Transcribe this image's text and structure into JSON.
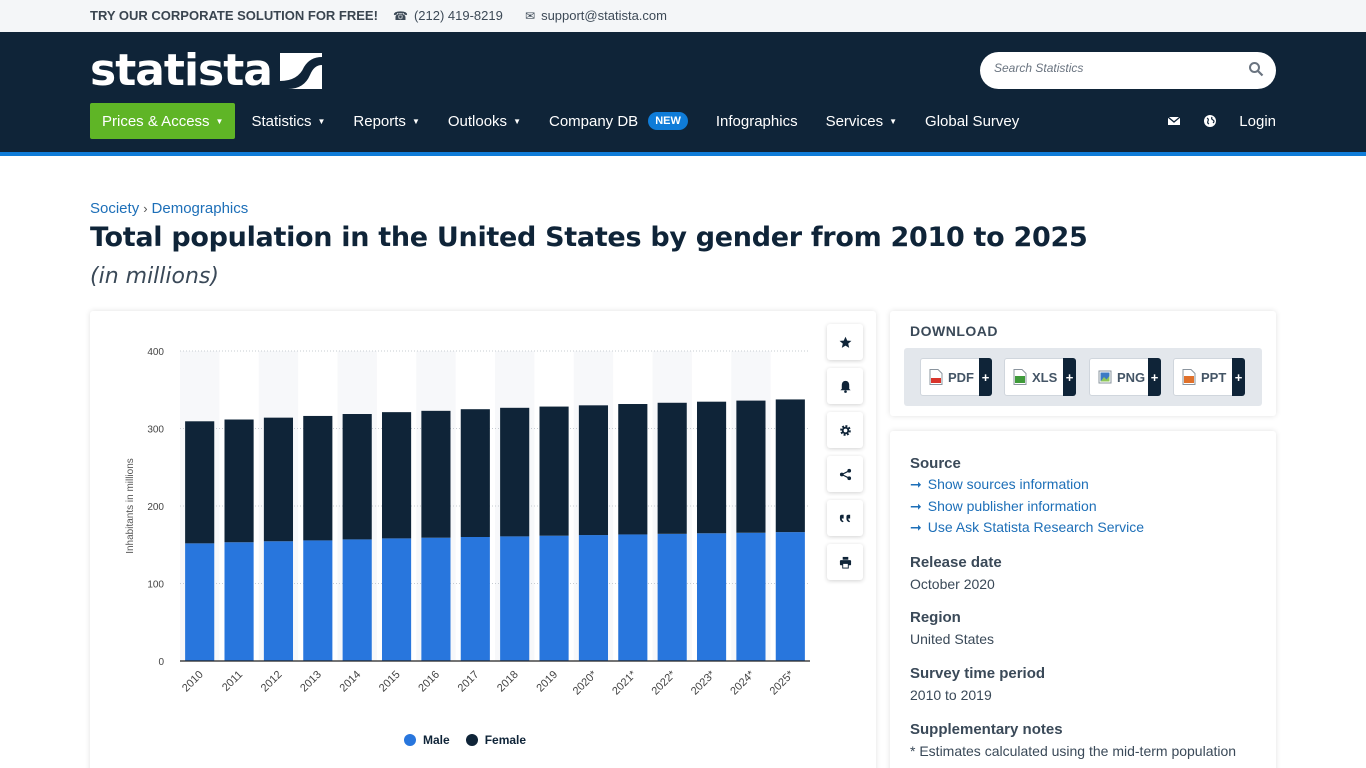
{
  "topbar": {
    "promo": "TRY OUR CORPORATE SOLUTION FOR FREE!",
    "phone": "(212) 419-8219",
    "email": "support@statista.com"
  },
  "header": {
    "logo": "statista",
    "search_placeholder": "Search Statistics",
    "nav": [
      {
        "label": "Prices & Access"
      },
      {
        "label": "Statistics"
      },
      {
        "label": "Reports"
      },
      {
        "label": "Outlooks"
      },
      {
        "label": "Company DB",
        "badge": "NEW"
      },
      {
        "label": "Infographics"
      },
      {
        "label": "Services"
      },
      {
        "label": "Global Survey"
      }
    ],
    "login": "Login"
  },
  "breadcrumbs": [
    "Society",
    "Demographics"
  ],
  "breadcrumb_sep": "›",
  "page": {
    "title": "Total population in the United States by gender from 2010 to 2025",
    "subtitle": "(in millions)"
  },
  "chart_data": {
    "type": "bar",
    "stacked": true,
    "categories": [
      "2010",
      "2011",
      "2012",
      "2013",
      "2014",
      "2015",
      "2016",
      "2017",
      "2018",
      "2019",
      "2020*",
      "2021*",
      "2022*",
      "2023*",
      "2024*",
      "2025*"
    ],
    "series": [
      {
        "name": "Male",
        "color": "#2876dd",
        "values": [
          151.8,
          153.2,
          154.5,
          155.6,
          156.9,
          158.2,
          159.1,
          160.0,
          160.8,
          161.7,
          162.5,
          163.3,
          164.1,
          164.8,
          165.5,
          166.3
        ]
      },
      {
        "name": "Female",
        "color": "#0f2438",
        "values": [
          157.5,
          158.4,
          159.5,
          160.6,
          161.8,
          162.9,
          163.7,
          164.9,
          165.9,
          166.6,
          167.4,
          168.3,
          169.1,
          169.8,
          170.5,
          171.2
        ]
      }
    ],
    "ylabel": "Inhabitants in millions",
    "ylim": [
      0,
      400
    ],
    "yticks": [
      0,
      100,
      200,
      300,
      400
    ],
    "grid": true,
    "legend": "bottom-center"
  },
  "tools": [
    "star-icon",
    "bell-icon",
    "gear-icon",
    "share-icon",
    "quote-icon",
    "print-icon"
  ],
  "download": {
    "title": "DOWNLOAD",
    "buttons": [
      {
        "label": "PDF",
        "color": "#d9342b"
      },
      {
        "label": "XLS",
        "color": "#3f9a3a"
      },
      {
        "label": "PNG",
        "color": "#3b7bc4"
      },
      {
        "label": "PPT",
        "color": "#e0712b"
      }
    ],
    "plus": "+"
  },
  "info": {
    "source_label": "Source",
    "source_links": [
      "Show sources information",
      "Show publisher information",
      "Use Ask Statista Research Service"
    ],
    "release_label": "Release date",
    "release_value": "October 2020",
    "region_label": "Region",
    "region_value": "United States",
    "survey_label": "Survey time period",
    "survey_value": "2010 to 2019",
    "notes_label": "Supplementary notes",
    "notes_value": "* Estimates calculated using the mid-term population"
  }
}
